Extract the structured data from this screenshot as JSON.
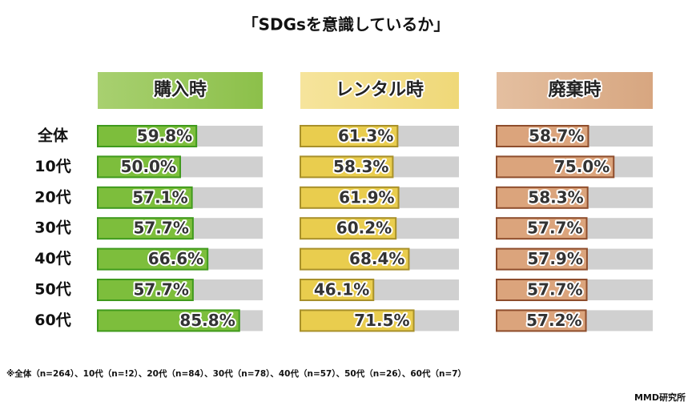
{
  "chart_data": {
    "type": "bar",
    "orientation": "horizontal",
    "title": "「SDGsを意識しているか」",
    "categories": [
      "全体",
      "10代",
      "20代",
      "30代",
      "40代",
      "50代",
      "60代"
    ],
    "xlim": [
      0,
      100
    ],
    "series": [
      {
        "name": "購入時",
        "color": "#7dbe3c",
        "values": [
          59.8,
          50.0,
          57.1,
          57.7,
          66.6,
          57.7,
          85.8
        ],
        "value_labels": [
          "59.8%",
          "50.0%",
          "57.1%",
          "57.7%",
          "66.6%",
          "57.7%",
          "85.8%"
        ]
      },
      {
        "name": "レンタル時",
        "color": "#e9cd4e",
        "values": [
          61.3,
          58.3,
          61.9,
          60.2,
          68.4,
          46.1,
          71.5
        ],
        "value_labels": [
          "61.3%",
          "58.3%",
          "61.9%",
          "60.2%",
          "68.4%",
          "46.1%",
          "71.5%"
        ]
      },
      {
        "name": "廃棄時",
        "color": "#dba47c",
        "values": [
          58.7,
          75.0,
          58.3,
          57.7,
          57.9,
          57.7,
          57.2
        ],
        "value_labels": [
          "58.7%",
          "75.0%",
          "58.3%",
          "57.7%",
          "57.9%",
          "57.7%",
          "57.2%"
        ]
      }
    ],
    "note": "※全体（n=264）、10代（n=!2）、20代（n=84）、30代（n=78）、40代（n=57）、50代（n=26）、60代（n=7）",
    "source": "MMD研究所"
  }
}
